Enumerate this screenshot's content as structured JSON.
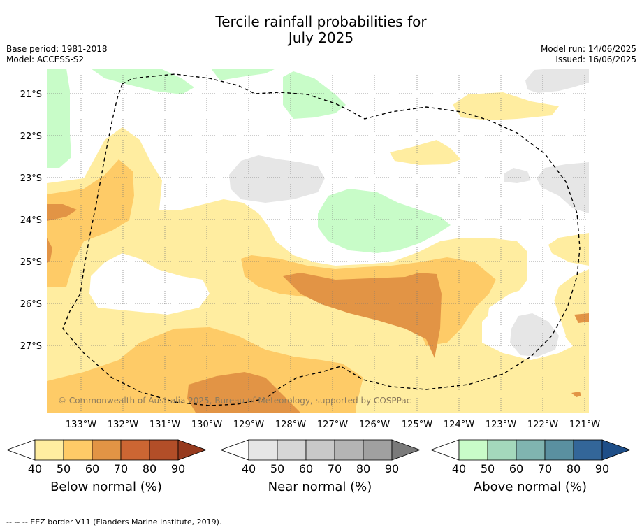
{
  "title_line1": "Tercile rainfall probabilities for",
  "title_line2": "July 2025",
  "base_period": "Base period: 1981-2018",
  "model": "Model: ACCESS-S2",
  "model_run": "Model run: 14/06/2025",
  "issued": "Issued: 16/06/2025",
  "copyright": "© Commonwealth of Australia 2025, Bureau of Meteorology, supported by COSPPac",
  "footnote": "--  --  -- EEZ border V11 (Flanders Marine Institute, 2019).",
  "map": {
    "lat_labels": [
      "21°S",
      "22°S",
      "23°S",
      "24°S",
      "25°S",
      "26°S",
      "27°S"
    ],
    "lon_labels": [
      "133°W",
      "132°W",
      "131°W",
      "130°W",
      "129°W",
      "128°W",
      "127°W",
      "126°W",
      "125°W",
      "124°W",
      "123°W",
      "122°W",
      "121°W"
    ]
  },
  "colorbars": [
    {
      "name": "below",
      "label": "Below normal (%)",
      "ticks": [
        "40",
        "50",
        "60",
        "70",
        "80",
        "90"
      ],
      "colors": [
        "#ffffff",
        "#ffeda0",
        "#fecb67",
        "#e29445",
        "#cc6633",
        "#b24e28",
        "#963a1e"
      ]
    },
    {
      "name": "near",
      "label": "Near normal (%)",
      "ticks": [
        "40",
        "50",
        "60",
        "70",
        "80",
        "90"
      ],
      "colors": [
        "#ffffff",
        "#e6e6e6",
        "#d6d6d6",
        "#c8c8c8",
        "#b4b4b4",
        "#a0a0a0",
        "#7a7a7a"
      ]
    },
    {
      "name": "above",
      "label": "Above normal (%)",
      "ticks": [
        "40",
        "50",
        "60",
        "70",
        "80",
        "90"
      ],
      "colors": [
        "#ffffff",
        "#c8fcc8",
        "#a4d8bc",
        "#80b4b0",
        "#5a90a0",
        "#336699",
        "#1e4e88"
      ]
    }
  ]
}
